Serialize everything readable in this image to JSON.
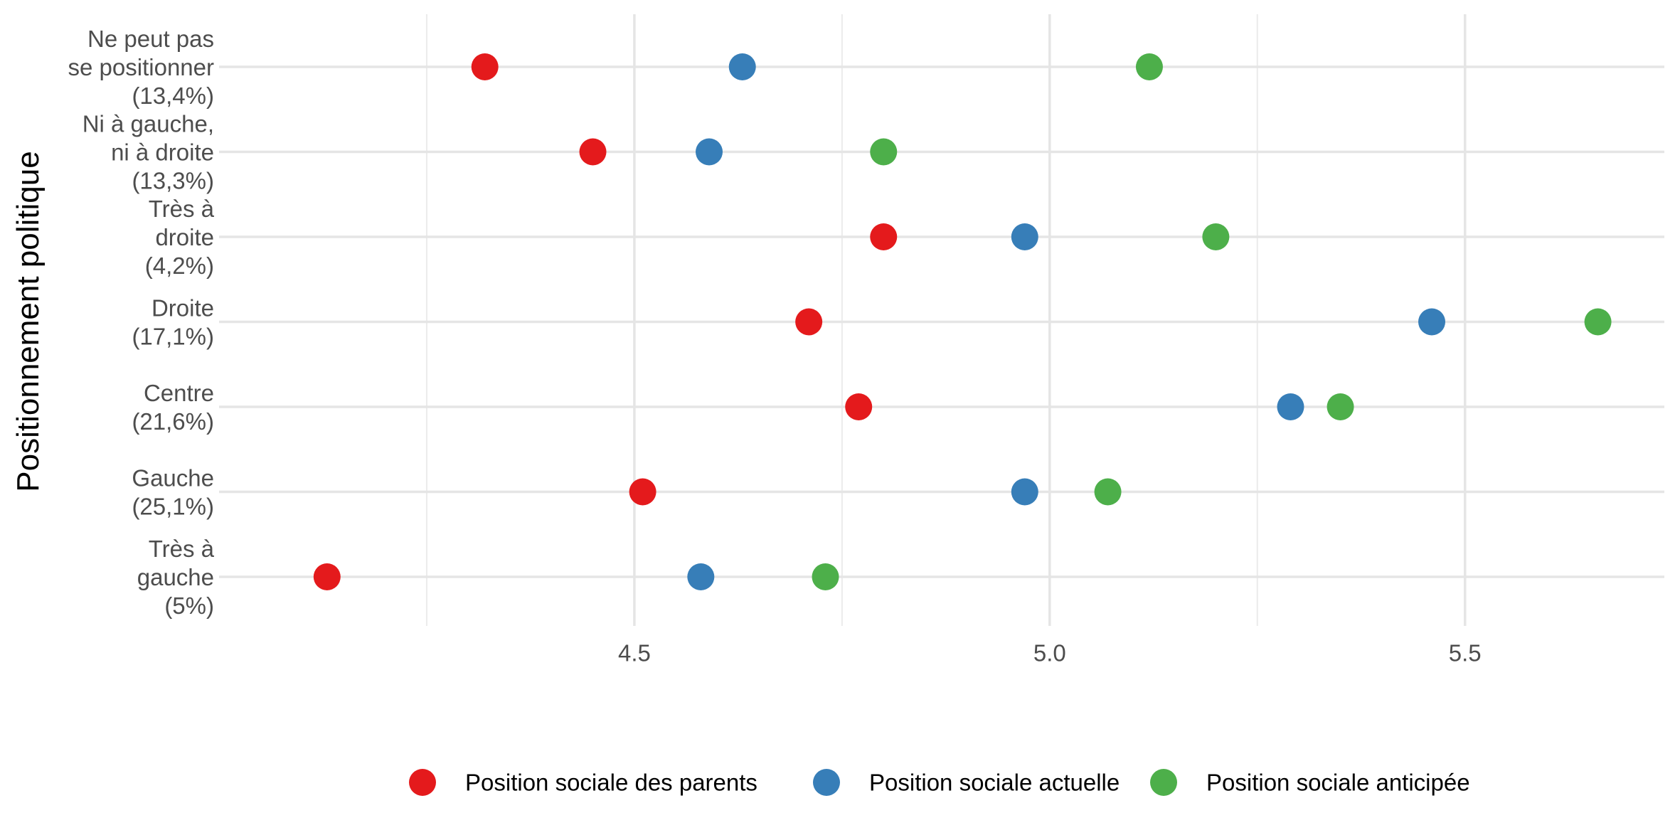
{
  "chart_data": {
    "type": "scatter",
    "ylabel": "Positionnement politique",
    "xlabel": "",
    "xlim": [
      4.0,
      5.74
    ],
    "x_ticks": [
      {
        "value": 4.5,
        "label": "4.5"
      },
      {
        "value": 5.0,
        "label": "5.0"
      },
      {
        "value": 5.5,
        "label": "5.5"
      }
    ],
    "x_minor_ticks": [
      4.25,
      4.75,
      5.25
    ],
    "grid": true,
    "legend_position": "bottom",
    "categories": [
      {
        "label": [
          "Ne peut pas",
          "se positionner",
          "(13,4%)"
        ]
      },
      {
        "label": [
          "Ni à gauche,",
          "ni à droite",
          "(13,3%)"
        ]
      },
      {
        "label": [
          "Très à",
          "droite",
          "(4,2%)"
        ]
      },
      {
        "label": [
          "Droite",
          "(17,1%)"
        ]
      },
      {
        "label": [
          "Centre",
          "(21,6%)"
        ]
      },
      {
        "label": [
          "Gauche",
          "(25,1%)"
        ]
      },
      {
        "label": [
          "Très à",
          "gauche",
          "(5%)"
        ]
      }
    ],
    "series": [
      {
        "name": "Position sociale des parents",
        "color": "#E41A1C",
        "values": [
          4.32,
          4.45,
          4.8,
          4.71,
          4.77,
          4.51,
          4.13
        ]
      },
      {
        "name": "Position sociale actuelle",
        "color": "#377EB8",
        "values": [
          4.63,
          4.59,
          4.97,
          5.46,
          5.29,
          4.97,
          4.58
        ]
      },
      {
        "name": "Position sociale anticipée",
        "color": "#4DAF4A",
        "values": [
          5.12,
          4.8,
          5.2,
          5.66,
          5.35,
          5.07,
          4.73
        ]
      }
    ]
  }
}
